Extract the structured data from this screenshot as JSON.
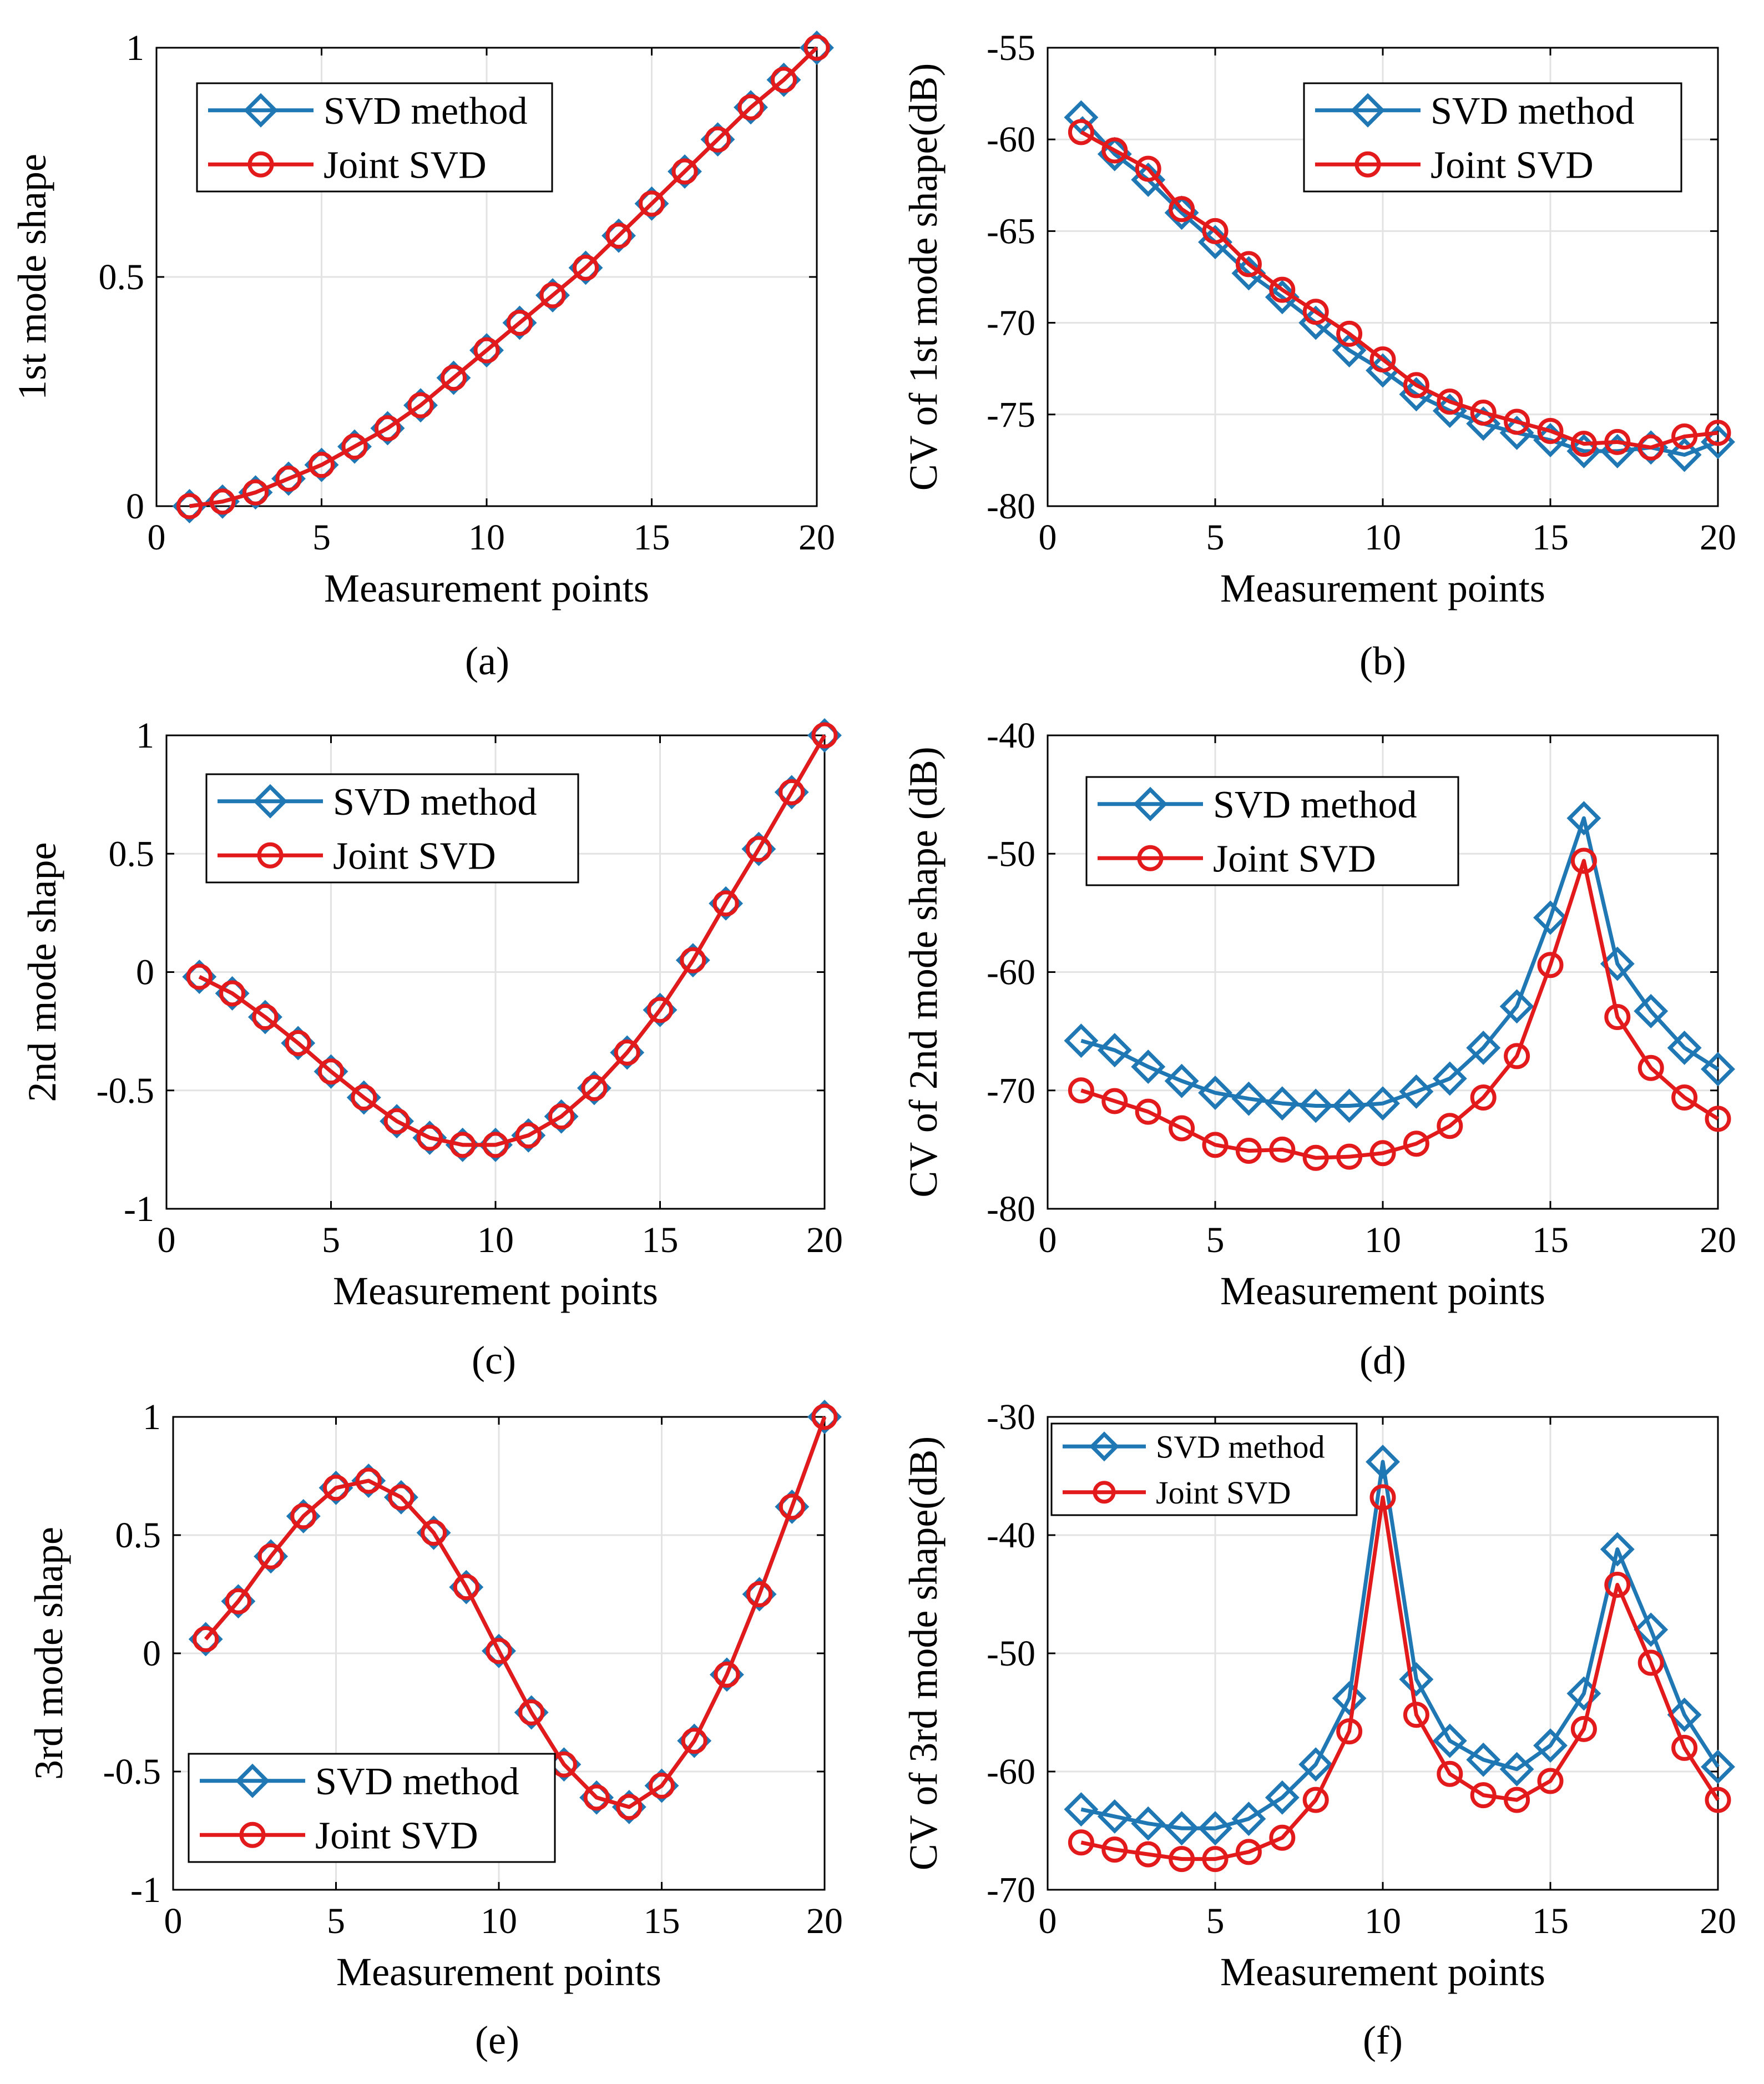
{
  "figure": {
    "colors": {
      "svd": "#1f77b4",
      "joint": "#e31a1c",
      "grid": "#e3e3e3",
      "axis": "#000000"
    }
  },
  "chart_data": [
    {
      "id": "a",
      "type": "line",
      "caption": "(a)",
      "xlabel": "Measurement points",
      "ylabel": "1st mode shape",
      "xlim": [
        0,
        20
      ],
      "ylim": [
        0,
        1
      ],
      "xticks": [
        0,
        5,
        10,
        15,
        20
      ],
      "xtick_labels": [
        "0",
        "5",
        "10",
        "15",
        "20"
      ],
      "yticks": [
        0,
        0.5,
        1
      ],
      "ytick_labels": [
        "0",
        "0.5",
        "1"
      ],
      "legend_position": "top-left",
      "x": [
        1,
        2,
        3,
        4,
        5,
        6,
        7,
        8,
        9,
        10,
        11,
        12,
        13,
        14,
        15,
        16,
        17,
        18,
        19,
        20
      ],
      "series": [
        {
          "name": "SVD method",
          "marker": "diamond",
          "color": "#1f77b4",
          "values": [
            0.0,
            0.01,
            0.03,
            0.06,
            0.09,
            0.13,
            0.17,
            0.22,
            0.28,
            0.34,
            0.4,
            0.46,
            0.52,
            0.59,
            0.66,
            0.73,
            0.8,
            0.87,
            0.93,
            1.0
          ]
        },
        {
          "name": "Joint SVD",
          "marker": "circle",
          "color": "#e31a1c",
          "values": [
            0.0,
            0.01,
            0.03,
            0.06,
            0.09,
            0.13,
            0.17,
            0.22,
            0.28,
            0.34,
            0.4,
            0.46,
            0.52,
            0.59,
            0.66,
            0.73,
            0.8,
            0.87,
            0.93,
            1.0
          ]
        }
      ]
    },
    {
      "id": "b",
      "type": "line",
      "caption": "(b)",
      "xlabel": "Measurement points",
      "ylabel": "CV of 1st mode shape(dB)",
      "xlim": [
        0,
        20
      ],
      "ylim": [
        -80,
        -55
      ],
      "xticks": [
        0,
        5,
        10,
        15,
        20
      ],
      "xtick_labels": [
        "0",
        "5",
        "10",
        "15",
        "20"
      ],
      "yticks": [
        -80,
        -75,
        -70,
        -65,
        -60,
        -55
      ],
      "ytick_labels": [
        "-80",
        "-75",
        "-70",
        "-65",
        "-60",
        "-55"
      ],
      "legend_position": "top-right",
      "x": [
        1,
        2,
        3,
        4,
        5,
        6,
        7,
        8,
        9,
        10,
        11,
        12,
        13,
        14,
        15,
        16,
        17,
        18,
        19,
        20
      ],
      "series": [
        {
          "name": "SVD method",
          "marker": "diamond",
          "color": "#1f77b4",
          "values": [
            -58.8,
            -60.8,
            -62.2,
            -64.0,
            -65.6,
            -67.3,
            -68.6,
            -70.0,
            -71.5,
            -72.6,
            -73.9,
            -74.8,
            -75.5,
            -76.0,
            -76.4,
            -77.0,
            -77.0,
            -76.8,
            -77.2,
            -76.5
          ]
        },
        {
          "name": "Joint SVD",
          "marker": "circle",
          "color": "#e31a1c",
          "values": [
            -59.6,
            -60.6,
            -61.6,
            -63.8,
            -65.0,
            -66.8,
            -68.2,
            -69.4,
            -70.6,
            -72.0,
            -73.4,
            -74.3,
            -74.9,
            -75.4,
            -75.9,
            -76.6,
            -76.5,
            -76.8,
            -76.2,
            -76.0
          ]
        }
      ]
    },
    {
      "id": "c",
      "type": "line",
      "caption": "(c)",
      "xlabel": "Measurement points",
      "ylabel": "2nd mode shape",
      "xlim": [
        0,
        20
      ],
      "ylim": [
        -1,
        1
      ],
      "xticks": [
        0,
        5,
        10,
        15,
        20
      ],
      "xtick_labels": [
        "0",
        "5",
        "10",
        "15",
        "20"
      ],
      "yticks": [
        -1,
        -0.5,
        0,
        0.5,
        1
      ],
      "ytick_labels": [
        "-1",
        "-0.5",
        "0",
        "0.5",
        "1"
      ],
      "legend_position": "top-left",
      "x": [
        1,
        2,
        3,
        4,
        5,
        6,
        7,
        8,
        9,
        10,
        11,
        12,
        13,
        14,
        15,
        16,
        17,
        18,
        19,
        20
      ],
      "series": [
        {
          "name": "SVD method",
          "marker": "diamond",
          "color": "#1f77b4",
          "values": [
            -0.02,
            -0.09,
            -0.19,
            -0.3,
            -0.42,
            -0.53,
            -0.63,
            -0.7,
            -0.73,
            -0.73,
            -0.69,
            -0.61,
            -0.49,
            -0.34,
            -0.16,
            0.05,
            0.29,
            0.52,
            0.76,
            1.0
          ]
        },
        {
          "name": "Joint SVD",
          "marker": "circle",
          "color": "#e31a1c",
          "values": [
            -0.02,
            -0.09,
            -0.19,
            -0.3,
            -0.42,
            -0.53,
            -0.63,
            -0.7,
            -0.73,
            -0.73,
            -0.69,
            -0.61,
            -0.49,
            -0.34,
            -0.16,
            0.05,
            0.29,
            0.52,
            0.76,
            1.0
          ]
        }
      ]
    },
    {
      "id": "d",
      "type": "line",
      "caption": "(d)",
      "xlabel": "Measurement points",
      "ylabel": "CV of 2nd mode shape (dB)",
      "xlim": [
        0,
        20
      ],
      "ylim": [
        -80,
        -40
      ],
      "xticks": [
        0,
        5,
        10,
        15,
        20
      ],
      "xtick_labels": [
        "0",
        "5",
        "10",
        "15",
        "20"
      ],
      "yticks": [
        -80,
        -70,
        -60,
        -50,
        -40
      ],
      "ytick_labels": [
        "-80",
        "-70",
        "-60",
        "-50",
        "-40"
      ],
      "legend_position": "top-left",
      "x": [
        1,
        2,
        3,
        4,
        5,
        6,
        7,
        8,
        9,
        10,
        11,
        12,
        13,
        14,
        15,
        16,
        17,
        18,
        19,
        20
      ],
      "series": [
        {
          "name": "SVD method",
          "marker": "diamond",
          "color": "#1f77b4",
          "values": [
            -65.8,
            -66.6,
            -68.0,
            -69.2,
            -70.2,
            -70.7,
            -71.1,
            -71.3,
            -71.3,
            -71.1,
            -70.1,
            -69.0,
            -66.4,
            -62.9,
            -55.4,
            -47.0,
            -59.3,
            -63.3,
            -66.4,
            -68.2
          ]
        },
        {
          "name": "Joint SVD",
          "marker": "circle",
          "color": "#e31a1c",
          "values": [
            -70.0,
            -70.9,
            -71.8,
            -73.2,
            -74.6,
            -75.1,
            -75.0,
            -75.7,
            -75.6,
            -75.3,
            -74.5,
            -73.0,
            -70.6,
            -67.1,
            -59.4,
            -50.6,
            -63.8,
            -68.1,
            -70.6,
            -72.4
          ]
        }
      ]
    },
    {
      "id": "e",
      "type": "line",
      "caption": "(e)",
      "xlabel": "Measurement points",
      "ylabel": "3rd mode shape",
      "xlim": [
        0,
        20
      ],
      "ylim": [
        -1,
        1
      ],
      "xticks": [
        0,
        5,
        10,
        15,
        20
      ],
      "xtick_labels": [
        "0",
        "5",
        "10",
        "15",
        "20"
      ],
      "yticks": [
        -1,
        -0.5,
        0,
        0.5,
        1
      ],
      "ytick_labels": [
        "-1",
        "-0.5",
        "0",
        "0.5",
        "1"
      ],
      "legend_position": "bottom-left",
      "x": [
        1,
        2,
        3,
        4,
        5,
        6,
        7,
        8,
        9,
        10,
        11,
        12,
        13,
        14,
        15,
        16,
        17,
        18,
        19,
        20
      ],
      "series": [
        {
          "name": "SVD method",
          "marker": "diamond",
          "color": "#1f77b4",
          "values": [
            0.06,
            0.22,
            0.41,
            0.58,
            0.7,
            0.73,
            0.66,
            0.51,
            0.28,
            0.01,
            -0.25,
            -0.47,
            -0.61,
            -0.65,
            -0.56,
            -0.37,
            -0.09,
            0.25,
            0.62,
            1.0
          ]
        },
        {
          "name": "Joint SVD",
          "marker": "circle",
          "color": "#e31a1c",
          "values": [
            0.06,
            0.22,
            0.41,
            0.58,
            0.7,
            0.73,
            0.66,
            0.51,
            0.28,
            0.01,
            -0.25,
            -0.47,
            -0.61,
            -0.65,
            -0.56,
            -0.37,
            -0.09,
            0.25,
            0.62,
            1.0
          ]
        }
      ]
    },
    {
      "id": "f",
      "type": "line",
      "caption": "(f)",
      "xlabel": "Measurement points",
      "ylabel": "CV of 3rd mode shape(dB)",
      "xlim": [
        0,
        20
      ],
      "ylim": [
        -70,
        -30
      ],
      "xticks": [
        0,
        5,
        10,
        15,
        20
      ],
      "xtick_labels": [
        "0",
        "5",
        "10",
        "15",
        "20"
      ],
      "yticks": [
        -70,
        -60,
        -50,
        -40,
        -30
      ],
      "ytick_labels": [
        "-70",
        "-60",
        "-50",
        "-40",
        "-30"
      ],
      "legend_position": "top-left",
      "legend_small": true,
      "x": [
        1,
        2,
        3,
        4,
        5,
        6,
        7,
        8,
        9,
        10,
        11,
        12,
        13,
        14,
        15,
        16,
        17,
        18,
        19,
        20
      ],
      "series": [
        {
          "name": "SVD method",
          "marker": "diamond",
          "color": "#1f77b4",
          "values": [
            -63.2,
            -63.8,
            -64.4,
            -64.8,
            -64.8,
            -64.0,
            -62.2,
            -59.4,
            -53.8,
            -33.8,
            -52.2,
            -57.4,
            -59.0,
            -59.8,
            -57.8,
            -53.4,
            -41.2,
            -48.0,
            -55.2,
            -59.6
          ]
        },
        {
          "name": "Joint SVD",
          "marker": "circle",
          "color": "#e31a1c",
          "values": [
            -66.0,
            -66.6,
            -67.0,
            -67.4,
            -67.4,
            -66.8,
            -65.6,
            -62.4,
            -56.6,
            -36.8,
            -55.2,
            -60.2,
            -62.0,
            -62.4,
            -60.8,
            -56.4,
            -44.2,
            -50.8,
            -58.0,
            -62.4
          ]
        }
      ]
    }
  ]
}
